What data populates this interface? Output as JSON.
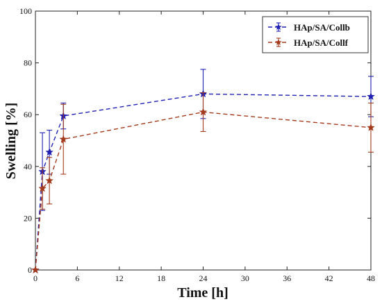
{
  "chart_data": {
    "type": "line",
    "xlabel": "Time [h]",
    "ylabel": "Swelling [%]",
    "xlim": [
      0,
      48
    ],
    "ylim": [
      0,
      100
    ],
    "xticks": [
      0,
      6,
      12,
      18,
      24,
      30,
      36,
      42,
      48
    ],
    "yticks": [
      0,
      20,
      40,
      60,
      80,
      100
    ],
    "grid": false,
    "legend_position": "top-right",
    "marker": "star",
    "line_style": "dashed",
    "series": [
      {
        "name": "HAp/SA/Collb",
        "color": "#1f1fb4",
        "x": [
          0,
          1,
          2,
          4,
          24,
          48
        ],
        "y": [
          0,
          38,
          45.5,
          59.5,
          68,
          67
        ],
        "err": [
          0,
          15,
          8.5,
          5,
          9.5,
          7.8
        ]
      },
      {
        "name": "HAp/SA/Collf",
        "color": "#a33a1c",
        "x": [
          0,
          1,
          2,
          4,
          24,
          48
        ],
        "y": [
          0,
          31.5,
          34.5,
          50.5,
          61,
          55
        ],
        "err": [
          0,
          8,
          9,
          13.5,
          7.5,
          9.5
        ]
      }
    ]
  }
}
